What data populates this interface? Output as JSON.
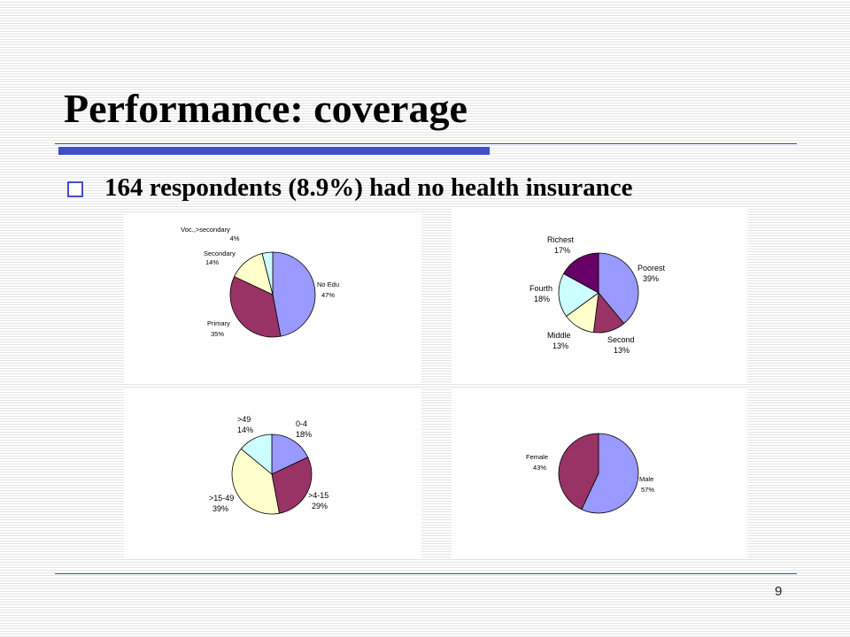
{
  "slide": {
    "title": "Performance: coverage",
    "bullet": "164 respondents (8.9%) had no health insurance",
    "page_number": "9",
    "accent_color": "#3f4fc4"
  },
  "charts": [
    {
      "name": "education",
      "slices": [
        {
          "label": "No Edu",
          "pct": "47%",
          "value": 47,
          "color": "#9999ff"
        },
        {
          "label": "Primary",
          "pct": "35%",
          "value": 35,
          "color": "#993366"
        },
        {
          "label": "Secondary",
          "pct": "14%",
          "value": 14,
          "color": "#ffffcc"
        },
        {
          "label": "Voc.,>secondary",
          "pct": "4%",
          "value": 4,
          "color": "#ccffff"
        }
      ]
    },
    {
      "name": "wealth",
      "slices": [
        {
          "label": "Poorest",
          "pct": "39%",
          "value": 39,
          "color": "#9999ff"
        },
        {
          "label": "Second",
          "pct": "13%",
          "value": 13,
          "color": "#993366"
        },
        {
          "label": "Middle",
          "pct": "13%",
          "value": 13,
          "color": "#ffffcc"
        },
        {
          "label": "Fourth",
          "pct": "18%",
          "value": 18,
          "color": "#ccffff"
        },
        {
          "label": "Richest",
          "pct": "17%",
          "value": 17,
          "color": "#660066"
        }
      ]
    },
    {
      "name": "age",
      "slices": [
        {
          "label": "0-4",
          "pct": "18%",
          "value": 18,
          "color": "#9999ff"
        },
        {
          "label": ">4-15",
          "pct": "29%",
          "value": 29,
          "color": "#993366"
        },
        {
          "label": ">15-49",
          "pct": "39%",
          "value": 39,
          "color": "#ffffcc"
        },
        {
          "label": ">49",
          "pct": "14%",
          "value": 14,
          "color": "#ccffff"
        }
      ]
    },
    {
      "name": "sex",
      "slices": [
        {
          "label": "Male",
          "pct": "57%",
          "value": 57,
          "color": "#9999ff"
        },
        {
          "label": "Female",
          "pct": "43%",
          "value": 43,
          "color": "#993366"
        }
      ]
    }
  ]
}
